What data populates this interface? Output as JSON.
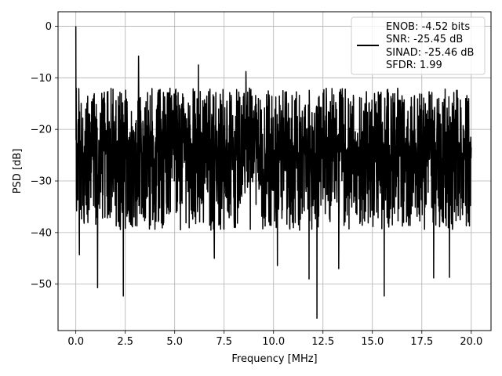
{
  "chart_data": {
    "type": "line",
    "title": "",
    "xlabel": "Frequency [MHz]",
    "ylabel": "PSD [dB]",
    "xlim": [
      -0.9,
      21.0
    ],
    "ylim": [
      -59.0,
      2.8
    ],
    "xticks": [
      0.0,
      2.5,
      5.0,
      7.5,
      10.0,
      12.5,
      15.0,
      17.5,
      20.0
    ],
    "xtick_labels": [
      "0.0",
      "2.5",
      "5.0",
      "7.5",
      "10.0",
      "12.5",
      "15.0",
      "17.5",
      "20.0"
    ],
    "yticks": [
      0,
      -10,
      -20,
      -30,
      -40,
      -50
    ],
    "ytick_labels": [
      "0",
      "−10",
      "−20",
      "−30",
      "−40",
      "−50"
    ],
    "grid": true,
    "legend_position": "top-right",
    "legend_lines": [
      "ENOB: -4.52 bits",
      "SNR: -25.45 dB",
      "SINAD: -25.46 dB",
      "SFDR: 1.99"
    ],
    "line_color": "#000000",
    "series": [
      {
        "num_points": 2000,
        "x_range": [
          0.0,
          20.0
        ],
        "peak": {
          "x": 0.0,
          "y": 0.0
        },
        "upper_envelope_db": -12,
        "median_db": -22,
        "lower_envelope_db": -38,
        "notable_spikes_up": [
          {
            "x": 3.17,
            "y": -5.8
          },
          {
            "x": 6.2,
            "y": -7.5
          },
          {
            "x": 8.6,
            "y": -8.8
          }
        ],
        "notable_dips": [
          {
            "x": 0.18,
            "y": -44.3
          },
          {
            "x": 1.1,
            "y": -50.7
          },
          {
            "x": 2.4,
            "y": -52.3
          },
          {
            "x": 7.0,
            "y": -45.0
          },
          {
            "x": 10.2,
            "y": -46.4
          },
          {
            "x": 11.8,
            "y": -49.0
          },
          {
            "x": 12.2,
            "y": -56.6
          },
          {
            "x": 13.3,
            "y": -47.0
          },
          {
            "x": 15.6,
            "y": -52.3
          },
          {
            "x": 18.1,
            "y": -48.8
          },
          {
            "x": 18.9,
            "y": -48.7
          }
        ]
      }
    ]
  }
}
